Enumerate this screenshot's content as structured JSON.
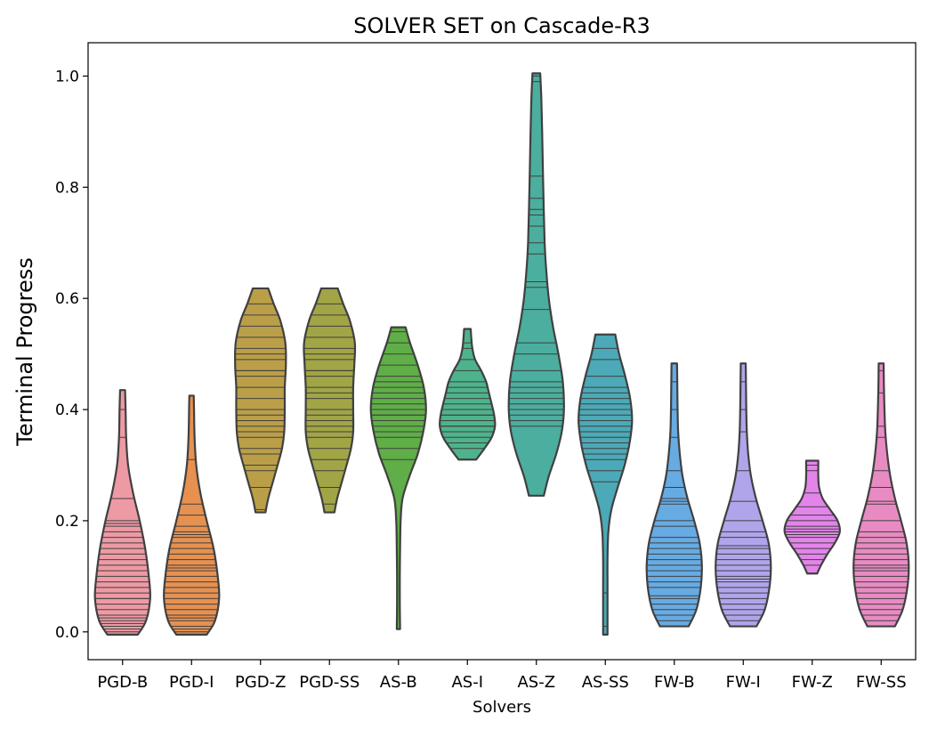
{
  "chart_data": {
    "type": "violin",
    "title": "SOLVER SET on Cascade-R3",
    "xlabel": "Solvers",
    "ylabel": "Terminal Progress",
    "ylim": [
      -0.05,
      1.06
    ],
    "yticks": [
      0.0,
      0.2,
      0.4,
      0.6,
      0.8,
      1.0
    ],
    "ytick_labels": [
      "0.0",
      "0.2",
      "0.4",
      "0.6",
      "0.8",
      "1.0"
    ],
    "grid": false,
    "inner": "stick",
    "categories": [
      "PGD-B",
      "PGD-I",
      "PGD-Z",
      "PGD-SS",
      "AS-B",
      "AS-I",
      "AS-Z",
      "AS-SS",
      "FW-B",
      "FW-I",
      "FW-Z",
      "FW-SS"
    ],
    "colors": [
      "#ed9aa4",
      "#e69150",
      "#bb9f48",
      "#a1a545",
      "#5fae47",
      "#4eb38c",
      "#4bae9e",
      "#4ca9b7",
      "#67abe3",
      "#b0a5eb",
      "#e484eb",
      "#e88bc3"
    ],
    "edge_color": "#404040",
    "series": [
      {
        "name": "PGD-B",
        "min": -0.005,
        "max": 0.435,
        "profile": [
          [
            -0.005,
            0.55
          ],
          [
            0.02,
            0.85
          ],
          [
            0.06,
            1.0
          ],
          [
            0.1,
            0.95
          ],
          [
            0.15,
            0.82
          ],
          [
            0.2,
            0.62
          ],
          [
            0.25,
            0.38
          ],
          [
            0.3,
            0.2
          ],
          [
            0.35,
            0.13
          ],
          [
            0.4,
            0.11
          ],
          [
            0.435,
            0.09
          ]
        ],
        "values": [
          0.0,
          0.005,
          0.01,
          0.015,
          0.02,
          0.025,
          0.03,
          0.04,
          0.05,
          0.06,
          0.06,
          0.07,
          0.08,
          0.09,
          0.1,
          0.11,
          0.12,
          0.13,
          0.14,
          0.15,
          0.16,
          0.17,
          0.18,
          0.19,
          0.195,
          0.195,
          0.2,
          0.24,
          0.35,
          0.4
        ]
      },
      {
        "name": "PGD-I",
        "min": -0.005,
        "max": 0.425,
        "profile": [
          [
            -0.005,
            0.55
          ],
          [
            0.02,
            0.85
          ],
          [
            0.06,
            1.0
          ],
          [
            0.1,
            0.95
          ],
          [
            0.15,
            0.8
          ],
          [
            0.2,
            0.55
          ],
          [
            0.25,
            0.32
          ],
          [
            0.3,
            0.17
          ],
          [
            0.35,
            0.11
          ],
          [
            0.4,
            0.09
          ],
          [
            0.425,
            0.08
          ]
        ],
        "values": [
          0.0,
          0.005,
          0.01,
          0.02,
          0.025,
          0.03,
          0.04,
          0.05,
          0.06,
          0.07,
          0.08,
          0.09,
          0.1,
          0.11,
          0.115,
          0.12,
          0.13,
          0.14,
          0.15,
          0.16,
          0.17,
          0.175,
          0.18,
          0.19,
          0.21,
          0.23,
          0.31
        ]
      },
      {
        "name": "PGD-Z",
        "min": 0.215,
        "max": 0.618,
        "profile": [
          [
            0.215,
            0.18
          ],
          [
            0.24,
            0.28
          ],
          [
            0.27,
            0.45
          ],
          [
            0.3,
            0.62
          ],
          [
            0.33,
            0.78
          ],
          [
            0.36,
            0.86
          ],
          [
            0.4,
            0.88
          ],
          [
            0.44,
            0.88
          ],
          [
            0.48,
            0.92
          ],
          [
            0.52,
            0.9
          ],
          [
            0.56,
            0.72
          ],
          [
            0.59,
            0.48
          ],
          [
            0.618,
            0.28
          ]
        ],
        "values": [
          0.22,
          0.26,
          0.29,
          0.3,
          0.32,
          0.33,
          0.35,
          0.36,
          0.37,
          0.38,
          0.39,
          0.4,
          0.42,
          0.44,
          0.46,
          0.47,
          0.47,
          0.49,
          0.5,
          0.51,
          0.53,
          0.55,
          0.57,
          0.59
        ]
      },
      {
        "name": "PGD-SS",
        "min": 0.215,
        "max": 0.618,
        "profile": [
          [
            0.215,
            0.18
          ],
          [
            0.24,
            0.28
          ],
          [
            0.27,
            0.45
          ],
          [
            0.3,
            0.62
          ],
          [
            0.33,
            0.78
          ],
          [
            0.36,
            0.86
          ],
          [
            0.4,
            0.86
          ],
          [
            0.44,
            0.86
          ],
          [
            0.48,
            0.9
          ],
          [
            0.52,
            0.92
          ],
          [
            0.56,
            0.74
          ],
          [
            0.59,
            0.5
          ],
          [
            0.618,
            0.3
          ]
        ],
        "values": [
          0.23,
          0.26,
          0.29,
          0.31,
          0.33,
          0.35,
          0.36,
          0.37,
          0.38,
          0.39,
          0.4,
          0.42,
          0.43,
          0.44,
          0.46,
          0.47,
          0.47,
          0.49,
          0.5,
          0.51,
          0.53,
          0.55,
          0.57,
          0.59
        ]
      },
      {
        "name": "AS-B",
        "min": 0.005,
        "max": 0.548,
        "profile": [
          [
            0.005,
            0.06
          ],
          [
            0.05,
            0.05
          ],
          [
            0.1,
            0.05
          ],
          [
            0.15,
            0.06
          ],
          [
            0.2,
            0.08
          ],
          [
            0.24,
            0.15
          ],
          [
            0.28,
            0.4
          ],
          [
            0.32,
            0.7
          ],
          [
            0.36,
            0.9
          ],
          [
            0.4,
            1.0
          ],
          [
            0.44,
            0.92
          ],
          [
            0.48,
            0.7
          ],
          [
            0.52,
            0.42
          ],
          [
            0.548,
            0.26
          ]
        ],
        "values": [
          0.31,
          0.33,
          0.35,
          0.36,
          0.37,
          0.38,
          0.39,
          0.39,
          0.4,
          0.41,
          0.42,
          0.43,
          0.44,
          0.45,
          0.46,
          0.48,
          0.5,
          0.52,
          0.54
        ]
      },
      {
        "name": "AS-I",
        "min": 0.31,
        "max": 0.545,
        "profile": [
          [
            0.31,
            0.32
          ],
          [
            0.33,
            0.62
          ],
          [
            0.35,
            0.88
          ],
          [
            0.37,
            1.0
          ],
          [
            0.39,
            0.97
          ],
          [
            0.41,
            0.88
          ],
          [
            0.43,
            0.78
          ],
          [
            0.45,
            0.68
          ],
          [
            0.47,
            0.5
          ],
          [
            0.49,
            0.28
          ],
          [
            0.51,
            0.18
          ],
          [
            0.53,
            0.14
          ],
          [
            0.545,
            0.12
          ]
        ],
        "values": [
          0.33,
          0.34,
          0.35,
          0.36,
          0.37,
          0.37,
          0.38,
          0.39,
          0.39,
          0.4,
          0.41,
          0.42,
          0.43,
          0.44,
          0.45,
          0.47,
          0.49,
          0.51,
          0.52
        ]
      },
      {
        "name": "AS-Z",
        "min": 0.245,
        "max": 1.005,
        "profile": [
          [
            0.245,
            0.27
          ],
          [
            0.28,
            0.45
          ],
          [
            0.32,
            0.72
          ],
          [
            0.36,
            0.92
          ],
          [
            0.4,
            1.0
          ],
          [
            0.45,
            0.96
          ],
          [
            0.5,
            0.8
          ],
          [
            0.55,
            0.6
          ],
          [
            0.6,
            0.45
          ],
          [
            0.65,
            0.36
          ],
          [
            0.7,
            0.3
          ],
          [
            0.8,
            0.25
          ],
          [
            0.9,
            0.21
          ],
          [
            0.96,
            0.18
          ],
          [
            1.005,
            0.14
          ]
        ],
        "values": [
          0.37,
          0.38,
          0.39,
          0.4,
          0.41,
          0.42,
          0.43,
          0.44,
          0.45,
          0.47,
          0.5,
          0.52,
          0.58,
          0.62,
          0.63,
          0.68,
          0.7,
          0.73,
          0.75,
          0.76,
          0.78,
          0.82,
          0.99,
          1.0
        ]
      },
      {
        "name": "AS-SS",
        "min": -0.005,
        "max": 0.535,
        "profile": [
          [
            -0.005,
            0.08
          ],
          [
            0.03,
            0.08
          ],
          [
            0.08,
            0.08
          ],
          [
            0.13,
            0.08
          ],
          [
            0.18,
            0.11
          ],
          [
            0.22,
            0.22
          ],
          [
            0.26,
            0.45
          ],
          [
            0.3,
            0.7
          ],
          [
            0.34,
            0.88
          ],
          [
            0.38,
            0.97
          ],
          [
            0.42,
            0.9
          ],
          [
            0.46,
            0.72
          ],
          [
            0.5,
            0.5
          ],
          [
            0.535,
            0.36
          ]
        ],
        "values": [
          0.01,
          0.07,
          0.27,
          0.29,
          0.31,
          0.32,
          0.33,
          0.34,
          0.35,
          0.36,
          0.37,
          0.38,
          0.39,
          0.4,
          0.41,
          0.42,
          0.43,
          0.44,
          0.46,
          0.49,
          0.51
        ]
      },
      {
        "name": "FW-B",
        "min": 0.01,
        "max": 0.483,
        "profile": [
          [
            0.01,
            0.52
          ],
          [
            0.04,
            0.8
          ],
          [
            0.08,
            0.96
          ],
          [
            0.12,
            1.0
          ],
          [
            0.16,
            0.92
          ],
          [
            0.2,
            0.72
          ],
          [
            0.24,
            0.48
          ],
          [
            0.28,
            0.3
          ],
          [
            0.32,
            0.2
          ],
          [
            0.36,
            0.14
          ],
          [
            0.4,
            0.12
          ],
          [
            0.44,
            0.11
          ],
          [
            0.483,
            0.1
          ]
        ],
        "values": [
          0.02,
          0.03,
          0.04,
          0.05,
          0.06,
          0.065,
          0.08,
          0.09,
          0.1,
          0.11,
          0.12,
          0.13,
          0.14,
          0.15,
          0.16,
          0.17,
          0.19,
          0.2,
          0.23,
          0.235,
          0.24,
          0.26,
          0.29,
          0.35,
          0.4,
          0.45
        ]
      },
      {
        "name": "FW-I",
        "min": 0.01,
        "max": 0.483,
        "profile": [
          [
            0.01,
            0.48
          ],
          [
            0.04,
            0.78
          ],
          [
            0.08,
            0.95
          ],
          [
            0.12,
            1.0
          ],
          [
            0.16,
            0.92
          ],
          [
            0.2,
            0.7
          ],
          [
            0.24,
            0.46
          ],
          [
            0.28,
            0.28
          ],
          [
            0.32,
            0.18
          ],
          [
            0.36,
            0.13
          ],
          [
            0.4,
            0.11
          ],
          [
            0.44,
            0.1
          ],
          [
            0.483,
            0.09
          ]
        ],
        "values": [
          0.02,
          0.03,
          0.04,
          0.05,
          0.06,
          0.07,
          0.08,
          0.09,
          0.095,
          0.1,
          0.11,
          0.12,
          0.13,
          0.14,
          0.15,
          0.155,
          0.17,
          0.18,
          0.2,
          0.235,
          0.29,
          0.36,
          0.4,
          0.45
        ]
      },
      {
        "name": "FW-Z",
        "min": 0.105,
        "max": 0.308,
        "profile": [
          [
            0.105,
            0.18
          ],
          [
            0.12,
            0.32
          ],
          [
            0.14,
            0.55
          ],
          [
            0.16,
            0.82
          ],
          [
            0.18,
            1.0
          ],
          [
            0.2,
            0.92
          ],
          [
            0.22,
            0.65
          ],
          [
            0.24,
            0.38
          ],
          [
            0.26,
            0.25
          ],
          [
            0.28,
            0.22
          ],
          [
            0.3,
            0.22
          ],
          [
            0.308,
            0.22
          ]
        ],
        "values": [
          0.12,
          0.13,
          0.14,
          0.15,
          0.16,
          0.17,
          0.175,
          0.18,
          0.18,
          0.185,
          0.19,
          0.2,
          0.21,
          0.225,
          0.25,
          0.29,
          0.3
        ]
      },
      {
        "name": "FW-SS",
        "min": 0.01,
        "max": 0.483,
        "profile": [
          [
            0.01,
            0.5
          ],
          [
            0.04,
            0.78
          ],
          [
            0.08,
            0.95
          ],
          [
            0.12,
            1.0
          ],
          [
            0.16,
            0.92
          ],
          [
            0.2,
            0.72
          ],
          [
            0.24,
            0.5
          ],
          [
            0.28,
            0.33
          ],
          [
            0.32,
            0.22
          ],
          [
            0.36,
            0.15
          ],
          [
            0.4,
            0.12
          ],
          [
            0.44,
            0.1
          ],
          [
            0.483,
            0.09
          ]
        ],
        "values": [
          0.02,
          0.03,
          0.04,
          0.05,
          0.06,
          0.07,
          0.08,
          0.09,
          0.1,
          0.11,
          0.115,
          0.12,
          0.13,
          0.14,
          0.15,
          0.16,
          0.17,
          0.18,
          0.2,
          0.23,
          0.235,
          0.26,
          0.29,
          0.35,
          0.37,
          0.43,
          0.47
        ]
      }
    ]
  }
}
